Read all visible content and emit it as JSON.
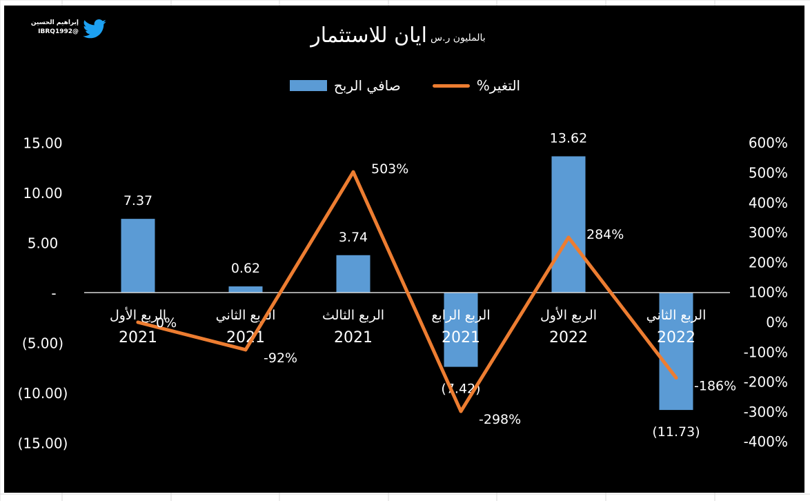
{
  "brand": {
    "name": "إبراهيم الحسين",
    "handle": "@IBRQ1992",
    "icon": "twitter-bird-icon",
    "color": "#1DA1F2"
  },
  "chart_data": {
    "type": "bar",
    "title": "ايان للاستثمار",
    "subtitle": "بالمليون ر.س",
    "categories": [
      [
        "الربع الأول",
        "2021"
      ],
      [
        "الربع الثاني",
        "2021"
      ],
      [
        "الربع الثالث",
        "2021"
      ],
      [
        "الربع الرابع",
        "2021"
      ],
      [
        "الربع الأول",
        "2022"
      ],
      [
        "الربع الثاني",
        "2022"
      ]
    ],
    "series": [
      {
        "name": "صافي الربح",
        "type": "bar",
        "axis": "left",
        "color": "#5B9BD5",
        "values": [
          7.37,
          0.62,
          3.74,
          -7.42,
          13.62,
          -11.73
        ],
        "labels": [
          "7.37",
          "0.62",
          "3.74",
          "(7.42)",
          "13.62",
          "(11.73)"
        ]
      },
      {
        "name": "التغير%",
        "type": "line",
        "axis": "right",
        "color": "#ED7D31",
        "values": [
          0,
          -92,
          503,
          -298,
          284,
          -186
        ],
        "labels": [
          "0%",
          "-92%",
          "503%",
          "-298%",
          "284%",
          "-186%"
        ]
      }
    ],
    "y_left": {
      "min": -15,
      "max": 15,
      "ticks": [
        15,
        10,
        5,
        0,
        -5,
        -10,
        -15
      ],
      "tick_labels": [
        "15.00",
        "10.00",
        "5.00",
        "-",
        "(5.00)",
        "(10.00)",
        "(15.00)"
      ]
    },
    "y_right": {
      "min": -400,
      "max": 600,
      "ticks": [
        600,
        500,
        400,
        300,
        200,
        100,
        0,
        -100,
        -200,
        -300,
        -400
      ],
      "tick_labels": [
        "600%",
        "500%",
        "400%",
        "300%",
        "200%",
        "100%",
        "0%",
        "-100%",
        "-200%",
        "-300%",
        "-400%"
      ]
    },
    "grid": false,
    "legend_position": "top",
    "background": "#000000",
    "text_color": "#FFFFFF"
  }
}
